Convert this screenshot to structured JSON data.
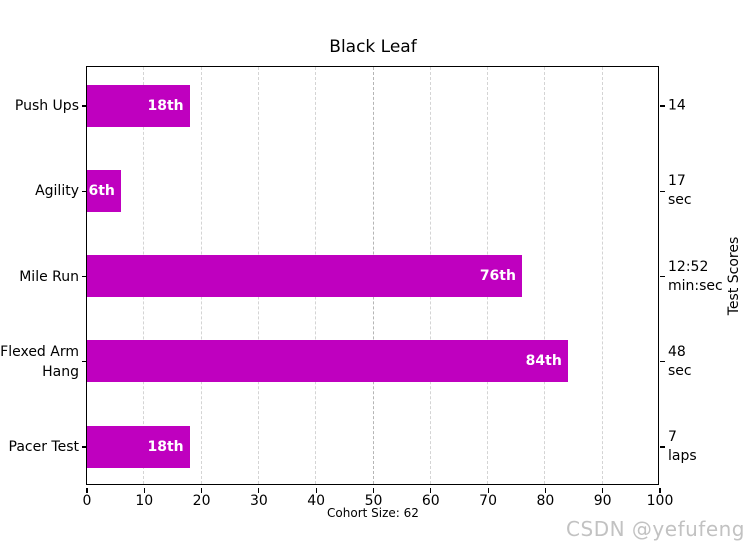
{
  "title": "Black Leaf",
  "watermark": "CSDN @yefufeng",
  "chart_data": {
    "type": "bar",
    "orientation": "horizontal",
    "title": "Black Leaf",
    "xlabel": "Cohort Size: 62",
    "right_axis_label": "Test Scores",
    "xlim": [
      0,
      100
    ],
    "xticks": [
      0,
      10,
      20,
      30,
      40,
      50,
      60,
      70,
      80,
      90,
      100
    ],
    "grid": {
      "axis": "x",
      "style": "dashed",
      "color": "#d4d4d4"
    },
    "median_line": {
      "x": 50,
      "color": "#b5b5b5",
      "style": "dashed"
    },
    "bar_color": "#bf00bf",
    "bar_label_color": "#ffffff",
    "categories": [
      "Push Ups",
      "Agility",
      "Mile Run",
      "Flexed Arm Hang",
      "Pacer Test"
    ],
    "values": [
      18,
      6,
      76,
      84,
      18
    ],
    "rows": [
      {
        "category_lines": [
          "Push Ups"
        ],
        "percentile": 18,
        "bar_label": "18th",
        "score_lines": [
          "14"
        ]
      },
      {
        "category_lines": [
          "Agility"
        ],
        "percentile": 6,
        "bar_label": "6th",
        "score_lines": [
          "17",
          "sec"
        ]
      },
      {
        "category_lines": [
          "Mile Run"
        ],
        "percentile": 76,
        "bar_label": "76th",
        "score_lines": [
          "12:52",
          "min:sec"
        ]
      },
      {
        "category_lines": [
          "Flexed Arm",
          "Hang"
        ],
        "percentile": 84,
        "bar_label": "84th",
        "score_lines": [
          "48",
          "sec"
        ]
      },
      {
        "category_lines": [
          "Pacer Test"
        ],
        "percentile": 18,
        "bar_label": "18th",
        "score_lines": [
          "7",
          "laps"
        ]
      }
    ]
  }
}
